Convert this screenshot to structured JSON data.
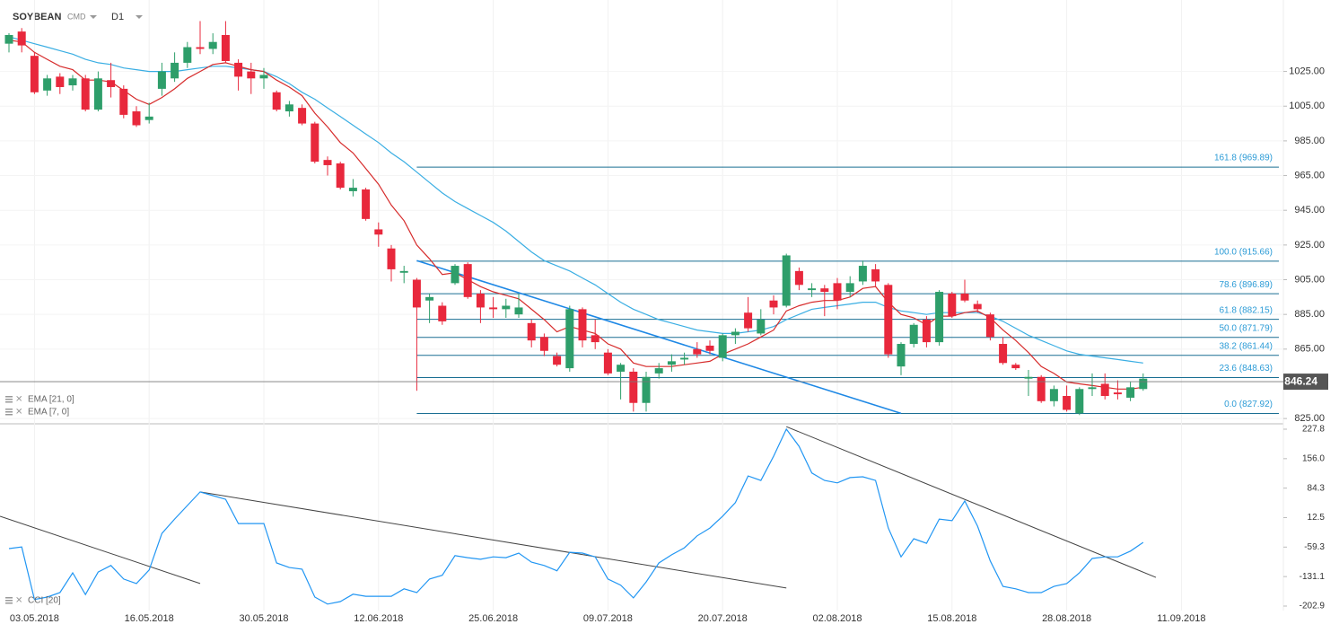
{
  "header": {
    "symbol": "SOYBEAN",
    "market": "CMD",
    "timeframe": "D1"
  },
  "chart_data": [
    {
      "type": "candlestick",
      "last_price": 846.24,
      "categories": [
        null,
        null,
        "03.05.2018",
        null,
        null,
        null,
        null,
        null,
        null,
        null,
        null,
        "16.05.2018",
        null,
        null,
        null,
        null,
        null,
        null,
        null,
        null,
        "30.05.2018",
        null,
        null,
        null,
        null,
        null,
        null,
        null,
        null,
        "12.06.2018",
        null,
        null,
        null,
        null,
        null,
        null,
        null,
        null,
        "25.06.2018",
        null,
        null,
        null,
        null,
        null,
        null,
        null,
        null,
        "09.07.2018",
        null,
        null,
        null,
        null,
        null,
        null,
        null,
        null,
        "20.07.2018",
        null,
        null,
        null,
        null,
        null,
        null,
        null,
        null,
        "02.08.2018",
        null,
        null,
        null,
        null,
        null,
        null,
        null,
        null,
        "15.08.2018",
        null,
        null,
        null,
        null,
        null,
        null,
        null,
        null,
        "28.08.2018",
        null,
        null,
        null,
        null,
        null,
        null,
        null,
        null,
        "11.09.2018"
      ],
      "open": [
        1041,
        1048,
        1034,
        1014,
        1022,
        1017,
        1021,
        1003,
        1020,
        1015,
        1002,
        997,
        1015,
        1021,
        1030,
        1039,
        1038,
        1046,
        1030,
        1025,
        1021,
        1013,
        1002,
        1004,
        995,
        974,
        972,
        956,
        957,
        934,
        923,
        909,
        905,
        893,
        890,
        903,
        914,
        897,
        889,
        888,
        885,
        880,
        872,
        861,
        854,
        888,
        873,
        863,
        852,
        852,
        834,
        851,
        856,
        859,
        865,
        867,
        860,
        873,
        886,
        874,
        893,
        890,
        910,
        899,
        900,
        903,
        898,
        904,
        911,
        902,
        855,
        868,
        882,
        869,
        897,
        897,
        891,
        885,
        868,
        856,
        848,
        849,
        835,
        838,
        828,
        842,
        845,
        840,
        837,
        842,
        null,
        null,
        null
      ],
      "high": [
        1047,
        1050,
        1036,
        1023,
        1024,
        1023,
        1023,
        1025,
        1030,
        1017,
        1005,
        1007,
        1030,
        1036,
        1042,
        1054,
        1047,
        1054,
        1032,
        1030,
        1027,
        1014,
        1008,
        1006,
        996,
        976,
        973,
        963,
        958,
        938,
        925,
        913,
        906,
        897,
        892,
        914,
        915,
        899,
        895,
        894,
        897,
        882,
        874,
        863,
        890,
        889,
        882,
        865,
        857,
        854,
        852,
        857,
        862,
        863,
        869,
        870,
        874,
        877,
        895,
        888,
        896,
        920,
        912,
        903,
        902,
        906,
        907,
        916,
        914,
        903,
        869,
        880,
        884,
        899,
        898,
        905,
        893,
        886,
        872,
        857,
        853,
        850,
        844,
        844,
        843,
        851,
        851,
        847,
        846,
        851,
        null,
        null,
        null
      ],
      "low": [
        1036,
        1036,
        1012,
        1011,
        1012,
        1014,
        1002,
        1002,
        1010,
        998,
        993,
        995,
        1011,
        1019,
        1027,
        1035,
        1035,
        1030,
        1014,
        1012,
        1015,
        1002,
        999,
        994,
        972,
        965,
        957,
        953,
        939,
        924,
        904,
        903,
        841,
        880,
        879,
        902,
        894,
        880,
        883,
        883,
        883,
        866,
        861,
        855,
        852,
        866,
        865,
        850,
        836,
        829,
        829,
        848,
        852,
        856,
        860,
        862,
        858,
        868,
        875,
        873,
        885,
        889,
        899,
        895,
        884,
        888,
        895,
        902,
        901,
        860,
        850,
        866,
        866,
        867,
        883,
        892,
        886,
        870,
        856,
        853,
        838,
        834,
        832,
        829,
        827,
        838,
        836,
        836,
        835,
        841,
        null,
        null,
        null
      ],
      "close": [
        1046,
        1040,
        1013,
        1021,
        1016,
        1021,
        1003,
        1021,
        1016,
        1000,
        994,
        999,
        1025,
        1030,
        1039,
        1038,
        1042,
        1031,
        1022,
        1021,
        1023,
        1003,
        1006,
        995,
        973,
        971,
        958,
        958,
        940,
        931,
        911,
        910,
        889,
        895,
        881,
        913,
        895,
        889,
        888,
        890,
        889,
        870,
        864,
        856,
        888,
        870,
        869,
        851,
        856,
        834,
        849,
        854,
        858,
        860,
        862,
        864,
        873,
        875,
        877,
        882,
        889,
        919,
        902,
        900,
        898,
        893,
        903,
        913,
        904,
        862,
        868,
        879,
        869,
        898,
        884,
        893,
        888,
        872,
        857,
        854,
        849,
        835,
        842,
        830,
        842,
        843,
        838,
        839,
        843,
        848,
        null,
        null,
        null
      ],
      "up_color": "#2e9e6a",
      "down_color": "#e8283c",
      "series": [
        {
          "name": "EMA [21, 0]",
          "color": "#3aaee3",
          "values": [
            1045,
            1043,
            1041,
            1039,
            1037,
            1035,
            1032,
            1030,
            1029,
            1027,
            1026,
            1025,
            1025,
            1025,
            1026,
            1027,
            1028,
            1028,
            1027,
            1026,
            1025,
            1022,
            1018,
            1013,
            1009,
            1004,
            999,
            994,
            989,
            984,
            978,
            973,
            967,
            961,
            955,
            950,
            946,
            942,
            938,
            933,
            927,
            921,
            916,
            913,
            910,
            906,
            902,
            897,
            892,
            888,
            885,
            882,
            880,
            878,
            876,
            875,
            874,
            874,
            875,
            876,
            878,
            882,
            885,
            888,
            889,
            890,
            891,
            892,
            892,
            889,
            887,
            886,
            885,
            886,
            886,
            886,
            886,
            884,
            881,
            877,
            873,
            870,
            867,
            864,
            862,
            861,
            860,
            859,
            858,
            857,
            null,
            null,
            null
          ]
        },
        {
          "name": "EMA [7, 0]",
          "color": "#d62b2b",
          "values": [
            1043,
            1042,
            1036,
            1032,
            1028,
            1026,
            1020,
            1020,
            1019,
            1014,
            1009,
            1006,
            1010,
            1015,
            1021,
            1025,
            1029,
            1030,
            1028,
            1026,
            1025,
            1020,
            1016,
            1011,
            1001,
            993,
            984,
            978,
            969,
            960,
            948,
            939,
            925,
            917,
            908,
            909,
            905,
            901,
            898,
            896,
            894,
            888,
            882,
            875,
            878,
            876,
            874,
            868,
            865,
            857,
            855,
            855,
            855,
            856,
            857,
            858,
            862,
            865,
            868,
            872,
            876,
            887,
            890,
            892,
            893,
            893,
            895,
            900,
            901,
            892,
            885,
            883,
            879,
            884,
            884,
            886,
            887,
            883,
            876,
            870,
            863,
            855,
            851,
            846,
            845,
            844,
            843,
            842,
            842,
            843,
            null,
            null,
            null
          ]
        }
      ],
      "fib": [
        {
          "label": "161.8 (969.89)",
          "value": 969.89
        },
        {
          "label": "100.0 (915.66)",
          "value": 915.66
        },
        {
          "label": "78.6 (896.89)",
          "value": 896.89
        },
        {
          "label": "61.8 (882.15)",
          "value": 882.15
        },
        {
          "label": "50.0 (871.79)",
          "value": 871.79
        },
        {
          "label": "38.2 (861.44)",
          "value": 861.44
        },
        {
          "label": "23.6 (848.63)",
          "value": 848.63
        },
        {
          "label": "0.0 (827.92)",
          "value": 827.92
        }
      ],
      "trendlines": [
        {
          "x": [
            32,
            70
          ],
          "values": [
            916,
            828
          ],
          "color": "#1e88e5"
        }
      ],
      "ylim": [
        823,
        1061
      ],
      "yticks": [
        {
          "value": 1025,
          "label": "1025.00"
        },
        {
          "value": 1005,
          "label": "1005.00"
        },
        {
          "value": 985,
          "label": "985.00"
        },
        {
          "value": 965,
          "label": "965.00"
        },
        {
          "value": 945,
          "label": "945.00"
        },
        {
          "value": 925,
          "label": "925.00"
        },
        {
          "value": 905,
          "label": "905.00"
        },
        {
          "value": 885,
          "label": "885.00"
        },
        {
          "value": 865,
          "label": "865.00"
        },
        {
          "value": 825,
          "label": "825.00"
        }
      ],
      "grid": true
    },
    {
      "type": "line",
      "series": [
        {
          "name": "CCI [20]",
          "color": "#2196f3",
          "values": [
            -63,
            -59,
            -187,
            -181,
            -170,
            -122,
            -175,
            -120,
            -104,
            -137,
            -148,
            -115,
            -26,
            9,
            42,
            75,
            66,
            57,
            -2,
            -2,
            -2,
            -98,
            -109,
            -113,
            -181,
            -198,
            -192,
            -174,
            -179,
            -179,
            -179,
            -161,
            -170,
            -137,
            -128,
            -80,
            -85,
            -89,
            -83,
            -85,
            -74,
            -96,
            -104,
            -117,
            -72,
            -74,
            -83,
            -137,
            -152,
            -183,
            -144,
            -98,
            -78,
            -61,
            -32,
            -13,
            16,
            49,
            114,
            103,
            162,
            228,
            186,
            121,
            103,
            97,
            110,
            112,
            103,
            -13,
            -83,
            -39,
            -50,
            9,
            5,
            53,
            -8,
            -93,
            -155,
            -161,
            -170,
            -170,
            -155,
            -148,
            -122,
            -87,
            -83,
            -83,
            -69,
            -48,
            null,
            null,
            null
          ]
        }
      ],
      "trendlines": [
        {
          "x": [
            -0.7,
            15
          ],
          "values": [
            15.7,
            -148
          ],
          "color": "#444"
        },
        {
          "x": [
            15,
            61
          ],
          "values": [
            75,
            -159
          ],
          "color": "#444"
        },
        {
          "x": [
            61,
            90
          ],
          "values": [
            234,
            -133
          ],
          "color": "#444"
        }
      ],
      "ylim": [
        -202.9,
        227.8
      ],
      "yticks": [
        227.8,
        {
          "value": 156,
          "label": "156.0"
        },
        84.3,
        12.5,
        -59.3,
        -131.1,
        -202.9
      ]
    }
  ]
}
